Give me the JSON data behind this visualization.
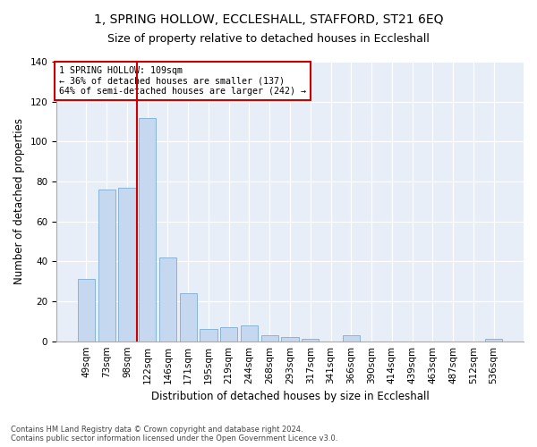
{
  "title": "1, SPRING HOLLOW, ECCLESHALL, STAFFORD, ST21 6EQ",
  "subtitle": "Size of property relative to detached houses in Eccleshall",
  "xlabel": "Distribution of detached houses by size in Eccleshall",
  "ylabel": "Number of detached properties",
  "categories": [
    "49sqm",
    "73sqm",
    "98sqm",
    "122sqm",
    "146sqm",
    "171sqm",
    "195sqm",
    "219sqm",
    "244sqm",
    "268sqm",
    "293sqm",
    "317sqm",
    "341sqm",
    "366sqm",
    "390sqm",
    "414sqm",
    "439sqm",
    "463sqm",
    "487sqm",
    "512sqm",
    "536sqm"
  ],
  "values": [
    31,
    76,
    77,
    112,
    42,
    24,
    6,
    7,
    8,
    3,
    2,
    1,
    0,
    3,
    0,
    0,
    0,
    0,
    0,
    0,
    1
  ],
  "bar_color": "#c5d8f0",
  "bar_edgecolor": "#7badd4",
  "vline_x": 2.5,
  "vline_color": "#cc0000",
  "annotation_text": "1 SPRING HOLLOW: 109sqm\n← 36% of detached houses are smaller (137)\n64% of semi-detached houses are larger (242) →",
  "annotation_box_color": "white",
  "annotation_box_edgecolor": "#cc0000",
  "ylim": [
    0,
    140
  ],
  "yticks": [
    0,
    20,
    40,
    60,
    80,
    100,
    120,
    140
  ],
  "bg_color": "#e8eef7",
  "footer_line1": "Contains HM Land Registry data © Crown copyright and database right 2024.",
  "footer_line2": "Contains public sector information licensed under the Open Government Licence v3.0.",
  "title_fontsize": 10,
  "subtitle_fontsize": 9,
  "axis_label_fontsize": 8.5,
  "tick_fontsize": 7.5
}
